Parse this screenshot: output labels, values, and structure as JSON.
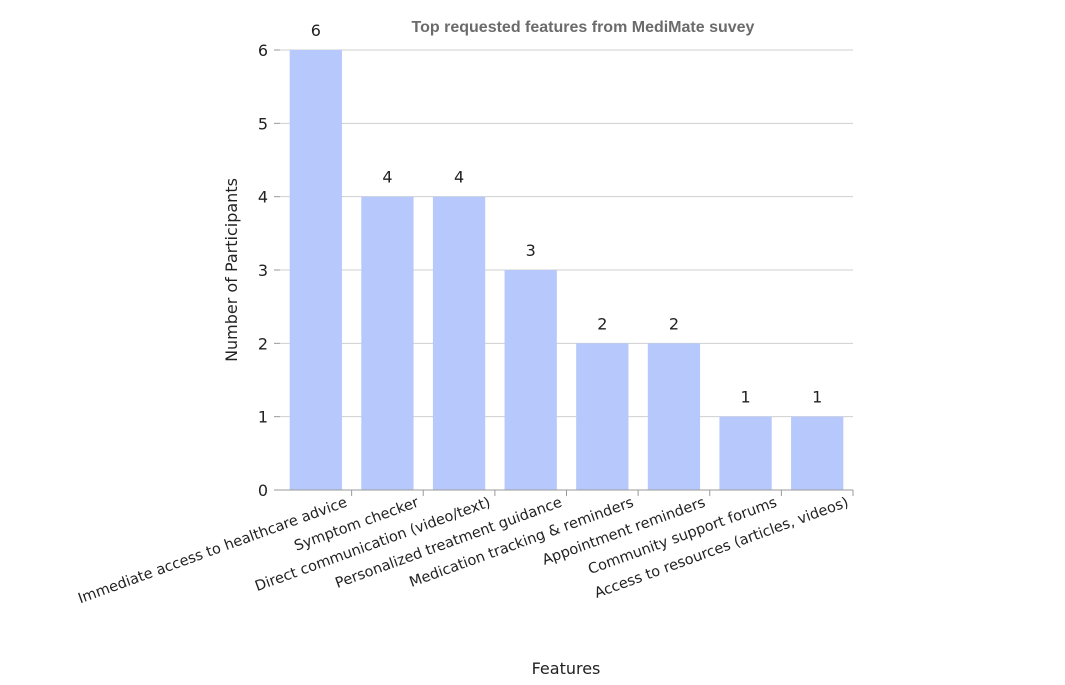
{
  "chart_data": {
    "type": "bar",
    "title": "Top requested features from MediMate suvey",
    "xlabel": "Features",
    "ylabel": "Number of Participants",
    "categories": [
      "Immediate access to healthcare advice",
      "Symptom checker",
      "Direct communication (video/text)",
      "Personalized treatment guidance",
      "Medication tracking & reminders",
      "Appointment reminders",
      "Community support forums",
      "Access to resources (articles, videos)"
    ],
    "values": [
      6,
      4,
      4,
      3,
      2,
      2,
      1,
      1
    ],
    "ylim": [
      0,
      6
    ],
    "yticks": [
      0,
      1,
      2,
      3,
      4,
      5,
      6
    ],
    "grid": true,
    "data_labels": true,
    "legend": "none",
    "colors": {
      "bar": "#b7c9fc",
      "grid": "#cfcfcf",
      "axis": "#9a9a9a",
      "title": "#6b6b6b",
      "text": "#222222"
    }
  }
}
